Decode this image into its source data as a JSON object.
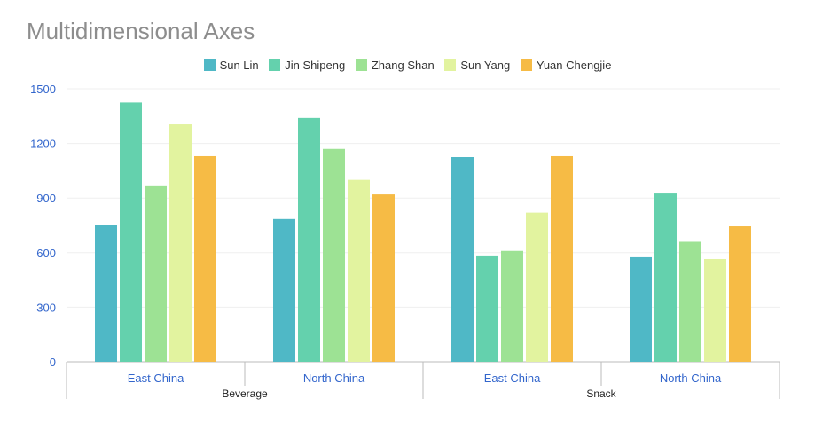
{
  "chart_data": {
    "type": "bar",
    "title": "Multidimensional Axes",
    "xlabel": "",
    "ylabel": "",
    "ylim": [
      0,
      1500
    ],
    "yticks": [
      0,
      300,
      600,
      900,
      1200,
      1500
    ],
    "grid": true,
    "legend_position": "top-center",
    "groups": [
      {
        "label": "Beverage",
        "categories": [
          "East China",
          "North China"
        ]
      },
      {
        "label": "Snack",
        "categories": [
          "East China",
          "North China"
        ]
      }
    ],
    "categories": [
      "East China",
      "North China",
      "East China",
      "North China"
    ],
    "series": [
      {
        "name": "Sun Lin",
        "color": "#4fb8c6",
        "values": [
          750,
          785,
          1125,
          575
        ]
      },
      {
        "name": "Jin Shipeng",
        "color": "#64d1ad",
        "values": [
          1425,
          1340,
          580,
          925
        ]
      },
      {
        "name": "Zhang Shan",
        "color": "#9de294",
        "values": [
          965,
          1170,
          610,
          660
        ]
      },
      {
        "name": "Sun Yang",
        "color": "#e2f39f",
        "values": [
          1305,
          1000,
          820,
          565
        ]
      },
      {
        "name": "Yuan Chengjie",
        "color": "#f6bb45",
        "values": [
          1130,
          920,
          1130,
          745
        ]
      }
    ]
  }
}
